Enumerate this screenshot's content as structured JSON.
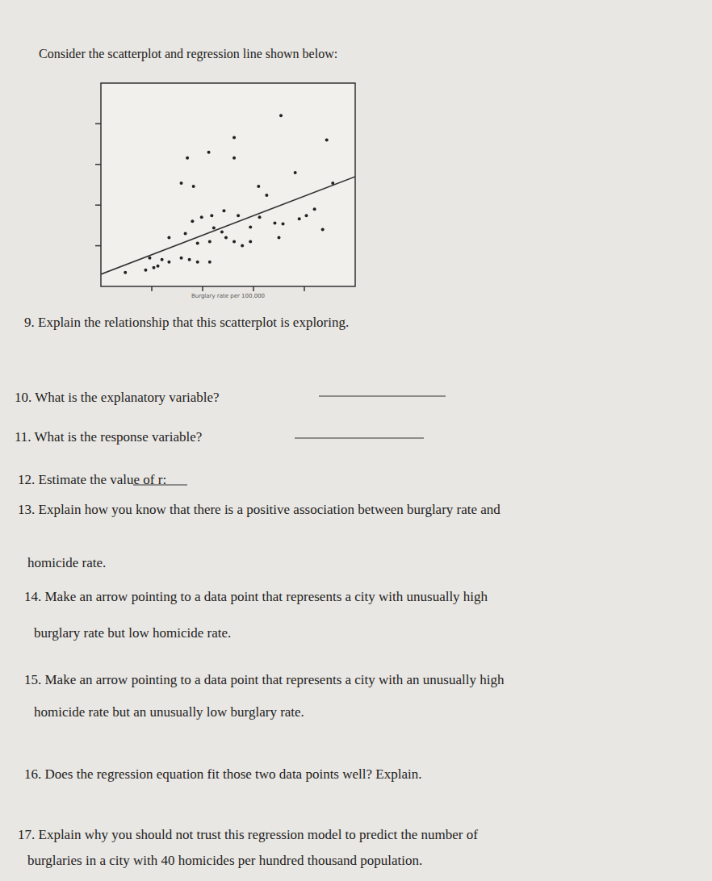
{
  "intro": "Consider the scatterplot and regression line shown below:",
  "chart_data": {
    "type": "scatter",
    "xlabel": "Burglary rate per 100,000",
    "x": [
      1310,
      1770,
      2220,
      1310,
      1060,
      850,
      790,
      910,
      1910,
      1550,
      1630,
      2280,
      1210,
      1350,
      1090,
      990,
      900,
      1560,
      1710,
      1790,
      1470,
      2020,
      1950,
      2100,
      2180,
      1750,
      670,
      830,
      1110,
      1190,
      1230,
      1310,
      1390,
      1470,
      1070,
      950,
      480,
      600,
      560,
      670,
      790,
      870,
      950,
      1070,
      440,
      520,
      240
    ],
    "values": [
      18.3,
      21.0,
      18.0,
      15.8,
      16.5,
      15.8,
      12.7,
      12.3,
      14.0,
      12.3,
      11.2,
      12.7,
      9.3,
      8.7,
      8.7,
      8.5,
      8.0,
      8.5,
      7.8,
      7.7,
      7.3,
      8.7,
      8.3,
      9.5,
      7.0,
      6.0,
      6.0,
      6.5,
      7.2,
      6.7,
      6.0,
      5.5,
      5.0,
      5.5,
      5.5,
      5.3,
      3.5,
      3.3,
      2.5,
      3.0,
      3.5,
      3.3,
      3.0,
      3.0,
      2.0,
      2.3,
      1.7
    ],
    "regression": {
      "intercept": 1.5,
      "slope": 0.0048
    },
    "xlim": [
      0,
      2500
    ],
    "ylim": [
      0,
      25
    ],
    "xticks": [
      500,
      1000,
      1500,
      2000
    ],
    "yticks": [
      5,
      10,
      15,
      20
    ],
    "tick_labels": false,
    "grid": false,
    "color": "#222222",
    "marker": "circle"
  },
  "questions": [
    {
      "lines": [
        "9.  Explain the relationship that this scatterplot is exploring."
      ],
      "answer_line": false
    },
    {
      "lines": [
        "10.  What is the explanatory variable?"
      ],
      "answer_line": true
    },
    {
      "lines": [
        "11.  What is the response variable?"
      ],
      "answer_line": true
    },
    {
      "lines": [
        "12.  Estimate the value of r:"
      ],
      "answer_line": true
    },
    {
      "lines": [
        "13.  Explain how you know that there is a positive association between burglary rate and",
        "homicide rate."
      ],
      "answer_line": false
    },
    {
      "lines": [
        "14.  Make an arrow pointing to a data point that represents a city with unusually high",
        "burglary rate but low homicide rate."
      ],
      "answer_line": false
    },
    {
      "lines": [
        "15.  Make an arrow pointing to a data point that represents a city with an unusually high",
        "homicide rate but an unusually low burglary rate."
      ],
      "answer_line": false
    },
    {
      "lines": [
        "16.  Does the regression equation fit those two data points well?  Explain."
      ],
      "answer_line": false
    },
    {
      "lines": [
        "17.  Explain why you should not trust this regression model to predict the number of",
        "burglaries in a city with 40 homicides per hundred thousand population."
      ],
      "answer_line": false
    }
  ]
}
